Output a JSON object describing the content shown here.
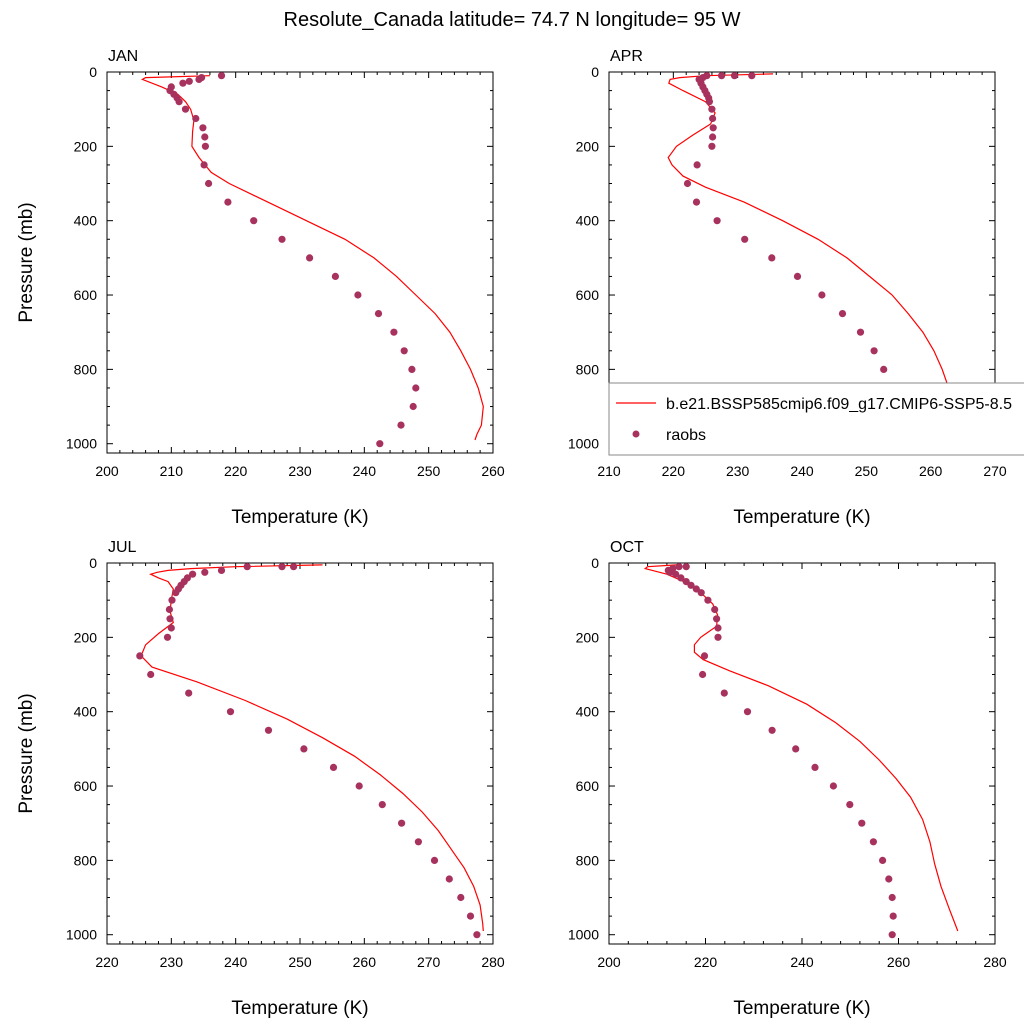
{
  "title": "Resolute_Canada  latitude= 74.7 N longitude= 95 W",
  "legend": {
    "line_label": "b.e21.BSSP585cmip6.f09_g17.CMIP6-SSP5-8.5",
    "dots_label": "raobs",
    "line_color": "#ff0000",
    "dots_color": "#a8325e"
  },
  "chart_data": [
    {
      "type": "line",
      "panel": "JAN",
      "xlabel": "Temperature (K)",
      "ylabel": "Pressure (mb)",
      "xlim": [
        200,
        260
      ],
      "ylim": [
        1025,
        0
      ],
      "xticks": [
        200,
        210,
        220,
        230,
        240,
        250,
        260
      ],
      "yticks": [
        0,
        200,
        400,
        600,
        800,
        1000
      ],
      "model": {
        "p": [
          10,
          15,
          20,
          40,
          60,
          80,
          100,
          130,
          160,
          200,
          230,
          270,
          300,
          350,
          400,
          450,
          500,
          550,
          600,
          650,
          700,
          750,
          800,
          850,
          900,
          950,
          975,
          990
        ],
        "t": [
          216,
          206,
          205.5,
          208.5,
          211,
          212.2,
          213,
          213.5,
          213.3,
          213.2,
          214.3,
          216.2,
          219,
          225,
          231,
          237,
          241.5,
          245,
          248,
          251,
          253.3,
          255,
          256.5,
          257.7,
          258.5,
          258.2,
          257.5,
          257.2
        ]
      },
      "raobs": {
        "p": [
          10,
          15,
          20,
          25,
          30,
          40,
          50,
          60,
          70,
          80,
          100,
          125,
          150,
          175,
          200,
          250,
          300,
          350,
          400,
          450,
          500,
          550,
          600,
          650,
          700,
          750,
          800,
          850,
          900,
          950,
          1000
        ],
        "t": [
          217.8,
          214.7,
          214.3,
          212.8,
          211.8,
          210,
          209.8,
          210.4,
          210.9,
          211.2,
          212.2,
          213.8,
          214.9,
          215.2,
          215.3,
          215.1,
          215.8,
          218.8,
          222.8,
          227.2,
          231.5,
          235.5,
          239,
          242.2,
          244.6,
          246.2,
          247.4,
          248,
          247.6,
          245.7,
          242.4
        ]
      }
    },
    {
      "type": "line",
      "panel": "APR",
      "xlabel": "Temperature (K)",
      "ylabel": "",
      "xlim": [
        210,
        270
      ],
      "ylim": [
        1025,
        0
      ],
      "xticks": [
        210,
        220,
        230,
        240,
        250,
        260,
        270
      ],
      "yticks": [
        0,
        200,
        400,
        600,
        800,
        1000
      ],
      "model": {
        "p": [
          5,
          10,
          15,
          20,
          30,
          50,
          80,
          110,
          140,
          170,
          200,
          230,
          250,
          280,
          310,
          350,
          400,
          450,
          500,
          550,
          600,
          650,
          700,
          750,
          800,
          850,
          900,
          950,
          1000
        ],
        "t": [
          235.5,
          225,
          221,
          219.5,
          219.3,
          221.5,
          225,
          226.5,
          225.8,
          223,
          220.5,
          219.2,
          219.8,
          221.5,
          225,
          231,
          237,
          242.5,
          247,
          250.5,
          254,
          256.5,
          258.8,
          260.5,
          261.8,
          262.8,
          263.2,
          263,
          261
        ]
      },
      "raobs": {
        "p": [
          10,
          10,
          10,
          10,
          15,
          20,
          30,
          40,
          50,
          60,
          70,
          80,
          100,
          125,
          150,
          175,
          200,
          250,
          300,
          350,
          400,
          450,
          500,
          550,
          600,
          650,
          700,
          750,
          800,
          850,
          900,
          950,
          1000
        ],
        "t": [
          232.2,
          229.5,
          227.5,
          225.2,
          224.6,
          224,
          224.3,
          224.6,
          224.9,
          225.2,
          225.5,
          225.6,
          226,
          226.1,
          226.2,
          226.1,
          226,
          223.7,
          222.2,
          223.6,
          226.8,
          231.1,
          235.3,
          239.3,
          243.1,
          246.3,
          249.1,
          251.2,
          252.7,
          253.8,
          254.1,
          253.4,
          251
        ]
      }
    },
    {
      "type": "line",
      "panel": "JUL",
      "xlabel": "Temperature (K)",
      "ylabel": "Pressure (mb)",
      "xlim": [
        220,
        280
      ],
      "ylim": [
        1025,
        0
      ],
      "xticks": [
        220,
        230,
        240,
        250,
        260,
        270,
        280
      ],
      "yticks": [
        0,
        200,
        400,
        600,
        800,
        1000
      ],
      "model": {
        "p": [
          5,
          10,
          15,
          20,
          25,
          30,
          40,
          50,
          70,
          100,
          130,
          160,
          190,
          220,
          250,
          280,
          320,
          370,
          420,
          470,
          520,
          570,
          620,
          670,
          720,
          770,
          820,
          870,
          920,
          970,
          990
        ],
        "t": [
          253.5,
          240,
          233,
          229.5,
          227.8,
          226.8,
          228,
          229.5,
          230.3,
          230,
          229.8,
          230.3,
          228,
          226,
          225.3,
          227,
          234,
          241.5,
          248,
          253.5,
          258.5,
          262.5,
          266,
          269,
          271.5,
          273.5,
          275.5,
          277,
          278,
          278.4,
          278.5
        ]
      },
      "raobs": {
        "p": [
          10,
          10,
          10,
          20,
          25,
          30,
          40,
          50,
          60,
          70,
          80,
          100,
          125,
          150,
          175,
          200,
          250,
          300,
          350,
          400,
          450,
          500,
          550,
          600,
          650,
          700,
          750,
          800,
          850,
          900,
          950,
          1000
        ],
        "t": [
          249,
          247.2,
          241.8,
          237.8,
          235.2,
          233.3,
          232.5,
          232,
          231.5,
          231.1,
          230.7,
          230.1,
          229.7,
          229.8,
          230,
          229.4,
          225.1,
          226.8,
          232.7,
          239.2,
          245.1,
          250.6,
          255.2,
          259.2,
          262.8,
          265.8,
          268.4,
          270.9,
          273.2,
          275,
          276.5,
          277.5
        ]
      }
    },
    {
      "type": "line",
      "panel": "OCT",
      "xlabel": "Temperature (K)",
      "ylabel": "",
      "xlim": [
        200,
        280
      ],
      "ylim": [
        1025,
        0
      ],
      "xticks": [
        200,
        220,
        240,
        260,
        280
      ],
      "yticks": [
        0,
        200,
        400,
        600,
        800,
        1000
      ],
      "model": {
        "p": [
          5,
          10,
          15,
          20,
          30,
          50,
          80,
          110,
          140,
          170,
          200,
          220,
          240,
          260,
          290,
          330,
          380,
          430,
          480,
          530,
          580,
          630,
          690,
          750,
          810,
          870,
          930,
          990
        ],
        "t": [
          214,
          208,
          207.5,
          209,
          212,
          215.5,
          219,
          221.5,
          222.5,
          222.3,
          219,
          217.7,
          217.7,
          219.5,
          225,
          233,
          241,
          247,
          252,
          256,
          259.5,
          262.5,
          265,
          266.5,
          267.5,
          268.8,
          270.5,
          272.3
        ]
      },
      "raobs": {
        "p": [
          10,
          10,
          15,
          20,
          25,
          30,
          40,
          50,
          60,
          70,
          80,
          100,
          125,
          150,
          175,
          200,
          250,
          300,
          350,
          400,
          450,
          500,
          550,
          600,
          650,
          700,
          750,
          800,
          850,
          900,
          950,
          1000
        ],
        "t": [
          216,
          214.5,
          213.2,
          212.3,
          212.6,
          213.8,
          214.9,
          216,
          217,
          218.1,
          219.1,
          220.5,
          221.9,
          222.3,
          222.6,
          222.6,
          219.8,
          219.4,
          223.9,
          228.7,
          233.8,
          238.7,
          242.7,
          246.5,
          249.9,
          252.4,
          254.8,
          256.7,
          258,
          258.7,
          258.9,
          258.7
        ]
      }
    }
  ]
}
